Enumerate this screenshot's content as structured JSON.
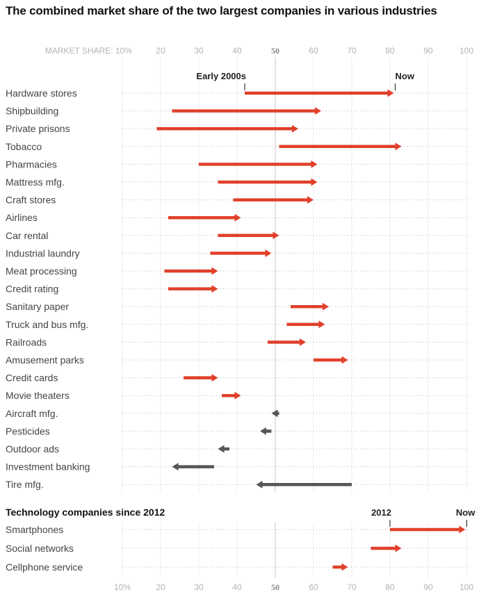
{
  "chart_data": [
    {
      "type": "arrow-range",
      "title": "The combined market share of the two largest companies in various industries",
      "xlabel": "MARKET SHARE",
      "axis_prefix": "MARKET SHARE: ",
      "xlim": [
        10,
        100
      ],
      "ticks": [
        "10%",
        "20",
        "30",
        "40",
        "50",
        "60",
        "70",
        "80",
        "90",
        "100"
      ],
      "tick_values": [
        10,
        20,
        30,
        40,
        50,
        60,
        70,
        80,
        90,
        100
      ],
      "bold_tick": 50,
      "start_label": "Early 2000s",
      "end_label": "Now",
      "grid": true,
      "colors": {
        "increase": "#e0402b",
        "decrease": "#555555"
      },
      "rows": [
        {
          "label": "Hardware stores",
          "start": 42,
          "end": 81
        },
        {
          "label": "Shipbuilding",
          "start": 23,
          "end": 62
        },
        {
          "label": "Private prisons",
          "start": 19,
          "end": 56
        },
        {
          "label": "Tobacco",
          "start": 51,
          "end": 83
        },
        {
          "label": "Pharmacies",
          "start": 30,
          "end": 61
        },
        {
          "label": "Mattress mfg.",
          "start": 35,
          "end": 61
        },
        {
          "label": "Craft stores",
          "start": 39,
          "end": 60
        },
        {
          "label": "Airlines",
          "start": 22,
          "end": 41
        },
        {
          "label": "Car rental",
          "start": 35,
          "end": 51
        },
        {
          "label": "Industrial laundry",
          "start": 33,
          "end": 49
        },
        {
          "label": "Meat processing",
          "start": 21,
          "end": 35
        },
        {
          "label": "Credit rating",
          "start": 22,
          "end": 35
        },
        {
          "label": "Sanitary paper",
          "start": 54,
          "end": 64
        },
        {
          "label": "Truck and bus mfg.",
          "start": 53,
          "end": 63
        },
        {
          "label": "Railroads",
          "start": 48,
          "end": 58
        },
        {
          "label": "Amusement parks",
          "start": 60,
          "end": 69
        },
        {
          "label": "Credit cards",
          "start": 26,
          "end": 35
        },
        {
          "label": "Movie theaters",
          "start": 36,
          "end": 41
        },
        {
          "label": "Aircraft mfg.",
          "start": 51,
          "end": 49
        },
        {
          "label": "Pesticides",
          "start": 49,
          "end": 46
        },
        {
          "label": "Outdoor ads",
          "start": 38,
          "end": 35
        },
        {
          "label": "Investment banking",
          "start": 34,
          "end": 23
        },
        {
          "label": "Tire mfg.",
          "start": 70,
          "end": 45
        }
      ]
    },
    {
      "type": "arrow-range",
      "title": "Technology companies since 2012",
      "xlim": [
        10,
        100
      ],
      "ticks": [
        "10%",
        "20",
        "30",
        "40",
        "50",
        "60",
        "70",
        "80",
        "90",
        "100"
      ],
      "tick_values": [
        10,
        20,
        30,
        40,
        50,
        60,
        70,
        80,
        90,
        100
      ],
      "bold_tick": 50,
      "start_label": "2012",
      "end_label": "Now",
      "grid": true,
      "colors": {
        "increase": "#e0402b",
        "decrease": "#555555"
      },
      "rows": [
        {
          "label": "Smartphones",
          "start": 80,
          "end": 99.7
        },
        {
          "label": "Social networks",
          "start": 75,
          "end": 83
        },
        {
          "label": "Cellphone service",
          "start": 65,
          "end": 69
        }
      ]
    }
  ]
}
